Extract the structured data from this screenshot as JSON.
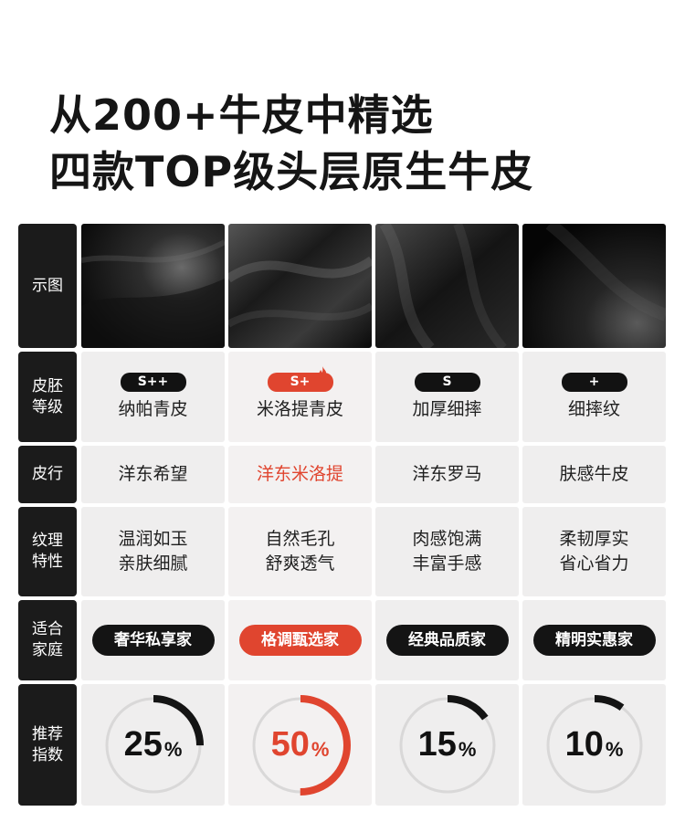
{
  "headline": {
    "line1": "从200+牛皮中精选",
    "line2": "四款TOP级头层原生牛皮"
  },
  "rows": {
    "image": {
      "label": "示图"
    },
    "grade": {
      "label": "皮胚\n等级"
    },
    "leather": {
      "label": "皮行"
    },
    "texture": {
      "label": "纹理\n特性"
    },
    "family": {
      "label": "适合\n家庭"
    },
    "recommend": {
      "label": "推荐\n指数"
    }
  },
  "products": [
    {
      "grade": "S++",
      "grade_name": "纳帕青皮",
      "leather": "洋东希望",
      "texture1": "温润如玉",
      "texture2": "亲肤细腻",
      "family": "奢华私享家",
      "percent": 25,
      "percent_text": "25",
      "pct_sign": "%",
      "highlight": false,
      "image_icon": "leather-texture-photo"
    },
    {
      "grade": "S+",
      "grade_name": "米洛提青皮",
      "leather": "洋东米洛提",
      "texture1": "自然毛孔",
      "texture2": "舒爽透气",
      "family": "格调甄选家",
      "percent": 50,
      "percent_text": "50",
      "pct_sign": "%",
      "highlight": true,
      "image_icon": "leather-texture-photo"
    },
    {
      "grade": "S",
      "grade_name": "加厚细摔",
      "leather": "洋东罗马",
      "texture1": "肉感饱满",
      "texture2": "丰富手感",
      "family": "经典品质家",
      "percent": 15,
      "percent_text": "15",
      "pct_sign": "%",
      "highlight": false,
      "image_icon": "leather-texture-photo"
    },
    {
      "grade": "+",
      "grade_name": "细摔纹",
      "leather": "肤感牛皮",
      "texture1": "柔韧厚实",
      "texture2": "省心省力",
      "family": "精明实惠家",
      "percent": 10,
      "percent_text": "10",
      "pct_sign": "%",
      "highlight": false,
      "image_icon": "leather-texture-photo"
    }
  ],
  "colors": {
    "accent": "#e0452f",
    "dark": "#141414",
    "cell_bg": "#efeeee",
    "ring_track": "#d9d8d8"
  }
}
